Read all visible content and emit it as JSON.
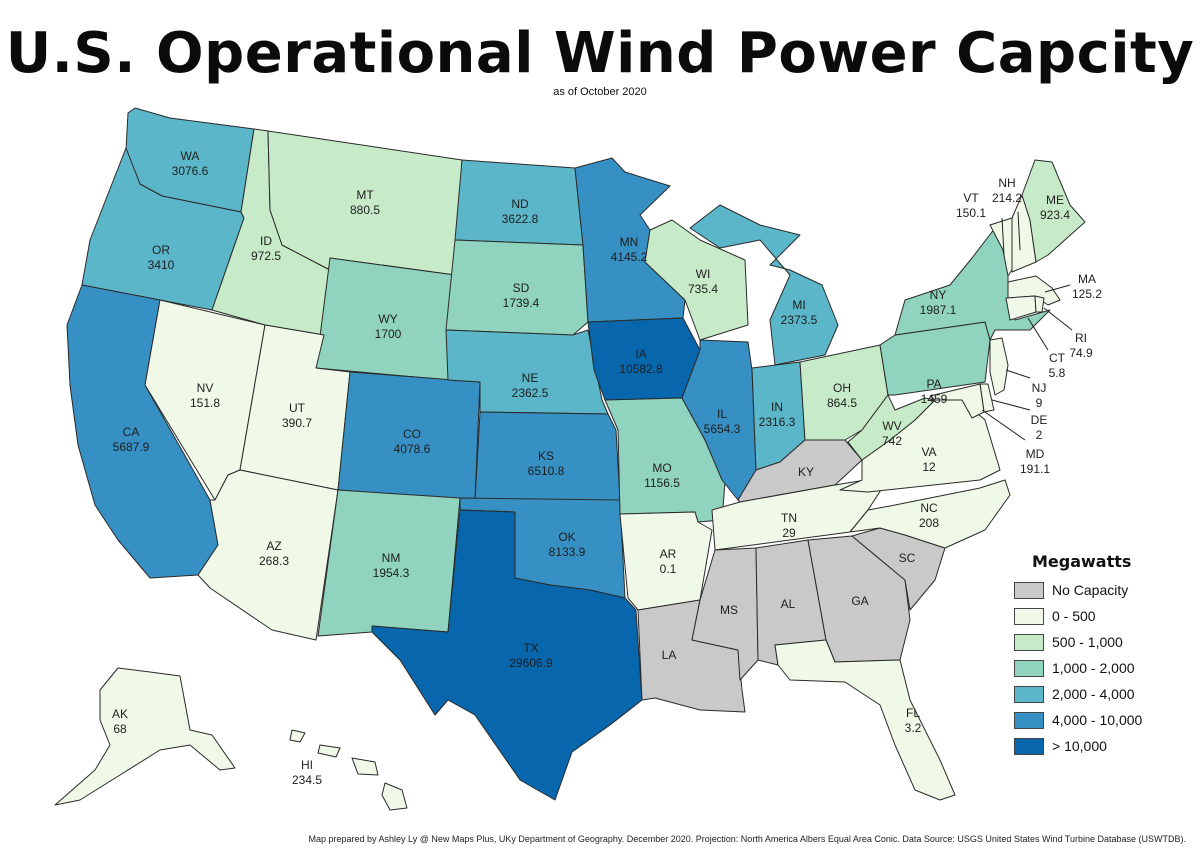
{
  "title": "U.S. Operational Wind Power Capcity",
  "subtitle": "as of October 2020",
  "credit": "Map prepared by Ashley Ly @ New Maps Plus, UKy Department of Geography. December 2020. Projection: North America Albers Equal Area Conic. Data Source: USGS United States Wind Turbine Database (USWTDB).",
  "legend": {
    "title": "Megawatts",
    "items": [
      {
        "label": "No Capacity",
        "color": "#c9c9c9"
      },
      {
        "label": "0 - 500",
        "color": "#f0f9e8"
      },
      {
        "label": "500 - 1,000",
        "color": "#c7ebc8"
      },
      {
        "label": "1,000 - 2,000",
        "color": "#90d3be"
      },
      {
        "label": "2,000 - 4,000",
        "color": "#5bb6c9"
      },
      {
        "label": "4,000 - 10,000",
        "color": "#3690c4"
      },
      {
        "label": "> 10,000",
        "color": "#0866ad"
      }
    ]
  },
  "states": [
    {
      "abbr": "WA",
      "value": "3076.6"
    },
    {
      "abbr": "OR",
      "value": "3410"
    },
    {
      "abbr": "CA",
      "value": "5687.9"
    },
    {
      "abbr": "ID",
      "value": "972.5"
    },
    {
      "abbr": "NV",
      "value": "151.8"
    },
    {
      "abbr": "MT",
      "value": "880.5"
    },
    {
      "abbr": "WY",
      "value": "1700"
    },
    {
      "abbr": "UT",
      "value": "390.7"
    },
    {
      "abbr": "AZ",
      "value": "268.3"
    },
    {
      "abbr": "CO",
      "value": "4078.6"
    },
    {
      "abbr": "NM",
      "value": "1954.3"
    },
    {
      "abbr": "ND",
      "value": "3622.8"
    },
    {
      "abbr": "SD",
      "value": "1739.4"
    },
    {
      "abbr": "NE",
      "value": "2362.5"
    },
    {
      "abbr": "KS",
      "value": "6510.8"
    },
    {
      "abbr": "OK",
      "value": "8133.9"
    },
    {
      "abbr": "TX",
      "value": "29606.9"
    },
    {
      "abbr": "MN",
      "value": "4145.2"
    },
    {
      "abbr": "IA",
      "value": "10582.8"
    },
    {
      "abbr": "MO",
      "value": "1156.5"
    },
    {
      "abbr": "AR",
      "value": "0.1"
    },
    {
      "abbr": "LA",
      "value": ""
    },
    {
      "abbr": "WI",
      "value": "735.4"
    },
    {
      "abbr": "IL",
      "value": "5654.3"
    },
    {
      "abbr": "MI",
      "value": "2373.5"
    },
    {
      "abbr": "IN",
      "value": "2316.3"
    },
    {
      "abbr": "OH",
      "value": "864.5"
    },
    {
      "abbr": "KY",
      "value": ""
    },
    {
      "abbr": "TN",
      "value": "29"
    },
    {
      "abbr": "MS",
      "value": ""
    },
    {
      "abbr": "AL",
      "value": ""
    },
    {
      "abbr": "GA",
      "value": ""
    },
    {
      "abbr": "FL",
      "value": "3.2"
    },
    {
      "abbr": "SC",
      "value": ""
    },
    {
      "abbr": "NC",
      "value": "208"
    },
    {
      "abbr": "VA",
      "value": "12"
    },
    {
      "abbr": "WV",
      "value": "742"
    },
    {
      "abbr": "PA",
      "value": "1459"
    },
    {
      "abbr": "NY",
      "value": "1987.1"
    },
    {
      "abbr": "VT",
      "value": "150.1"
    },
    {
      "abbr": "NH",
      "value": "214.2"
    },
    {
      "abbr": "ME",
      "value": "923.4"
    },
    {
      "abbr": "MA",
      "value": "125.2"
    },
    {
      "abbr": "RI",
      "value": "74.9"
    },
    {
      "abbr": "CT",
      "value": "5.8"
    },
    {
      "abbr": "NJ",
      "value": "9"
    },
    {
      "abbr": "DE",
      "value": "2"
    },
    {
      "abbr": "MD",
      "value": "191.1"
    },
    {
      "abbr": "AK",
      "value": "68"
    },
    {
      "abbr": "HI",
      "value": "234.5"
    }
  ]
}
